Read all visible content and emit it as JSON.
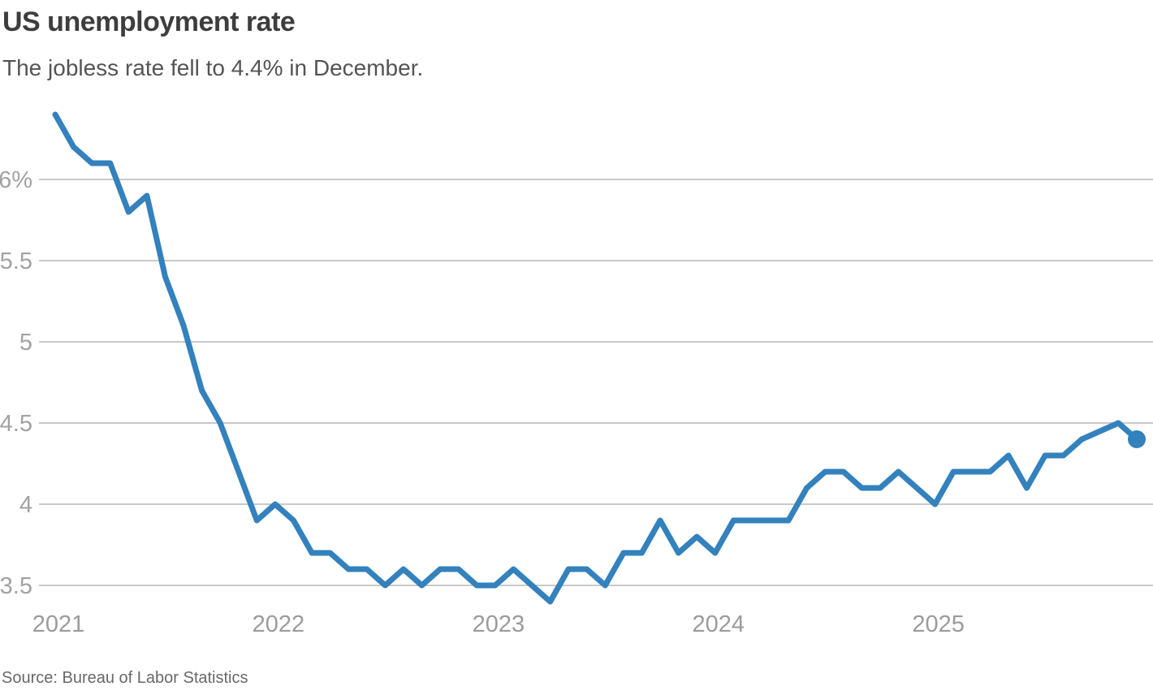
{
  "header": {
    "title": "US unemployment rate",
    "subtitle": "The jobless rate fell to 4.4% in December."
  },
  "footer": {
    "source": "Source: Bureau of Labor Statistics"
  },
  "chart_data": {
    "type": "line",
    "title": "US unemployment rate",
    "subtitle": "The jobless rate fell to 4.4% in December.",
    "unit": "percent",
    "years": [
      "2021",
      "2022",
      "2023",
      "2024",
      "2025"
    ],
    "values_by_year": {
      "2021": [
        6.4,
        6.2,
        6.1,
        6.1,
        5.8,
        5.9,
        5.4,
        5.1,
        4.7,
        4.5,
        4.2,
        3.9
      ],
      "2022": [
        4.0,
        3.9,
        3.7,
        3.7,
        3.6,
        3.6,
        3.5,
        3.6,
        3.5,
        3.6,
        3.6,
        3.5
      ],
      "2023": [
        3.5,
        3.6,
        3.5,
        3.4,
        3.6,
        3.6,
        3.5,
        3.7,
        3.7,
        3.9,
        3.7,
        3.8
      ],
      "2024": [
        3.7,
        3.9,
        3.9,
        3.9,
        3.9,
        4.1,
        4.2,
        4.2,
        4.1,
        4.1,
        4.2,
        4.1
      ],
      "2025": [
        4.0,
        4.2,
        4.2,
        4.2,
        4.3,
        4.1,
        4.3,
        4.3,
        4.4,
        null,
        4.5,
        4.4
      ]
    },
    "missing_months": [
      "2025-10"
    ],
    "end_dot": {
      "month": "2025-12",
      "value": 4.4
    },
    "x_tick_labels": [
      "2021",
      "2022",
      "2023",
      "2024",
      "2025"
    ],
    "y_ticks": [
      6,
      5.5,
      5,
      4.5,
      4,
      3.5
    ],
    "y_tick_labels": [
      "6%",
      "5.5",
      "5",
      "4.5",
      "4",
      "3.5"
    ],
    "ylim": [
      3.35,
      6.45
    ],
    "grid": "horizontal",
    "legend": "none",
    "line_color": "#3381bd",
    "gridline_color": "#c9c9c9",
    "y_label_color": "#a2a2a2",
    "x_label_color": "#9b9b9b",
    "source": "Source: Bureau of Labor Statistics"
  }
}
